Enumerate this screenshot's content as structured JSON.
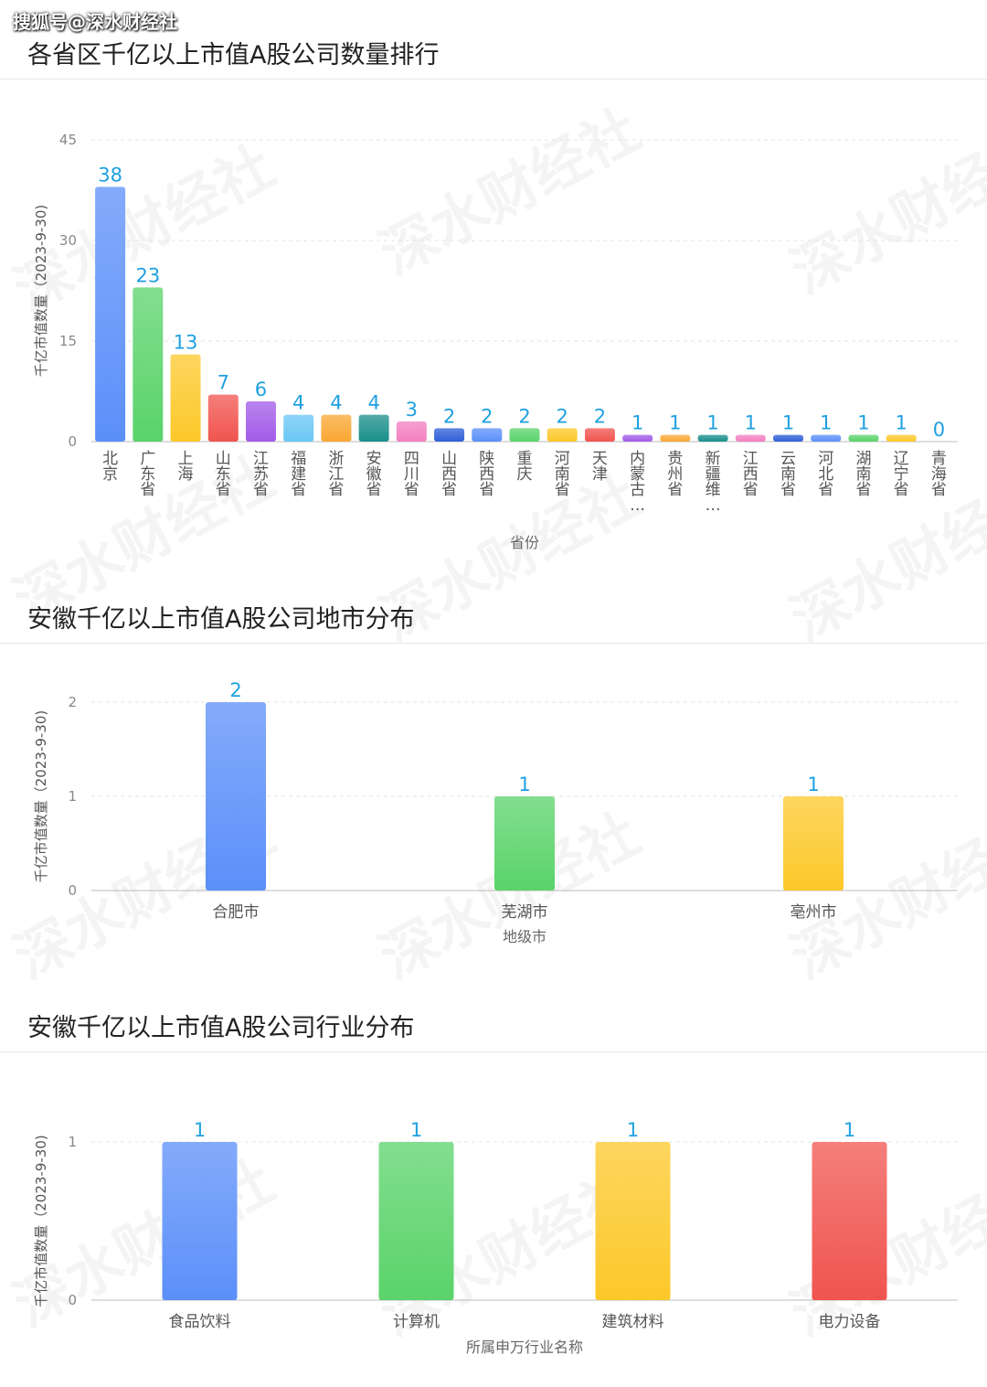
{
  "source_tag": "搜狐号@深水财经社",
  "watermark_text": "深水财经社",
  "chart_data": [
    {
      "type": "bar",
      "title": "各省区千亿以上市值A股公司数量排行",
      "xlabel": "省份",
      "ylabel": "千亿市值数量（2023-9-30)",
      "yticks": [
        0,
        15,
        30,
        45
      ],
      "ylim": [
        0,
        45
      ],
      "grid": true,
      "categories": [
        "北京",
        "广东省",
        "上海",
        "山东省",
        "江苏省",
        "福建省",
        "浙江省",
        "安徽省",
        "四川省",
        "山西省",
        "陕西省",
        "重庆",
        "河南省",
        "天津",
        "内蒙古…",
        "贵州省",
        "新疆维…",
        "江西省",
        "云南省",
        "河北省",
        "湖南省",
        "辽宁省",
        "青海省"
      ],
      "values": [
        38,
        23,
        13,
        7,
        6,
        4,
        4,
        4,
        3,
        2,
        2,
        2,
        2,
        2,
        1,
        1,
        1,
        1,
        1,
        1,
        1,
        1,
        0
      ],
      "colors": [
        "#5b8ff9",
        "#5ad36a",
        "#fcc829",
        "#f0544f",
        "#a25be8",
        "#69c7f4",
        "#f9a733",
        "#1a8f8a",
        "#f47fc2",
        "#2f5fd8",
        "#5b8ff9",
        "#5ad36a",
        "#fcc829",
        "#f0544f",
        "#a25be8",
        "#f9a733",
        "#1a8f8a",
        "#f47fc2",
        "#2f5fd8",
        "#5b8ff9",
        "#5ad36a",
        "#fcc829",
        "#69c7f4"
      ]
    },
    {
      "type": "bar",
      "title": "安徽千亿以上市值A股公司地市分布",
      "xlabel": "地级市",
      "ylabel": "千亿市值数量（2023-9-30)",
      "yticks": [
        0,
        1,
        2
      ],
      "ylim": [
        0,
        2
      ],
      "grid": true,
      "categories": [
        "合肥市",
        "芜湖市",
        "亳州市"
      ],
      "values": [
        2,
        1,
        1
      ],
      "colors": [
        "#5b8ff9",
        "#5ad36a",
        "#fcc829"
      ]
    },
    {
      "type": "bar",
      "title": "安徽千亿以上市值A股公司行业分布",
      "xlabel": "所属申万行业名称",
      "ylabel": "千亿市值数量（2023-9-30)",
      "yticks": [
        0,
        1
      ],
      "ylim": [
        0,
        1
      ],
      "grid": true,
      "categories": [
        "食品饮料",
        "计算机",
        "建筑材料",
        "电力设备"
      ],
      "values": [
        1,
        1,
        1,
        1
      ],
      "colors": [
        "#5b8ff9",
        "#5ad36a",
        "#fcc829",
        "#f0544f"
      ]
    }
  ]
}
